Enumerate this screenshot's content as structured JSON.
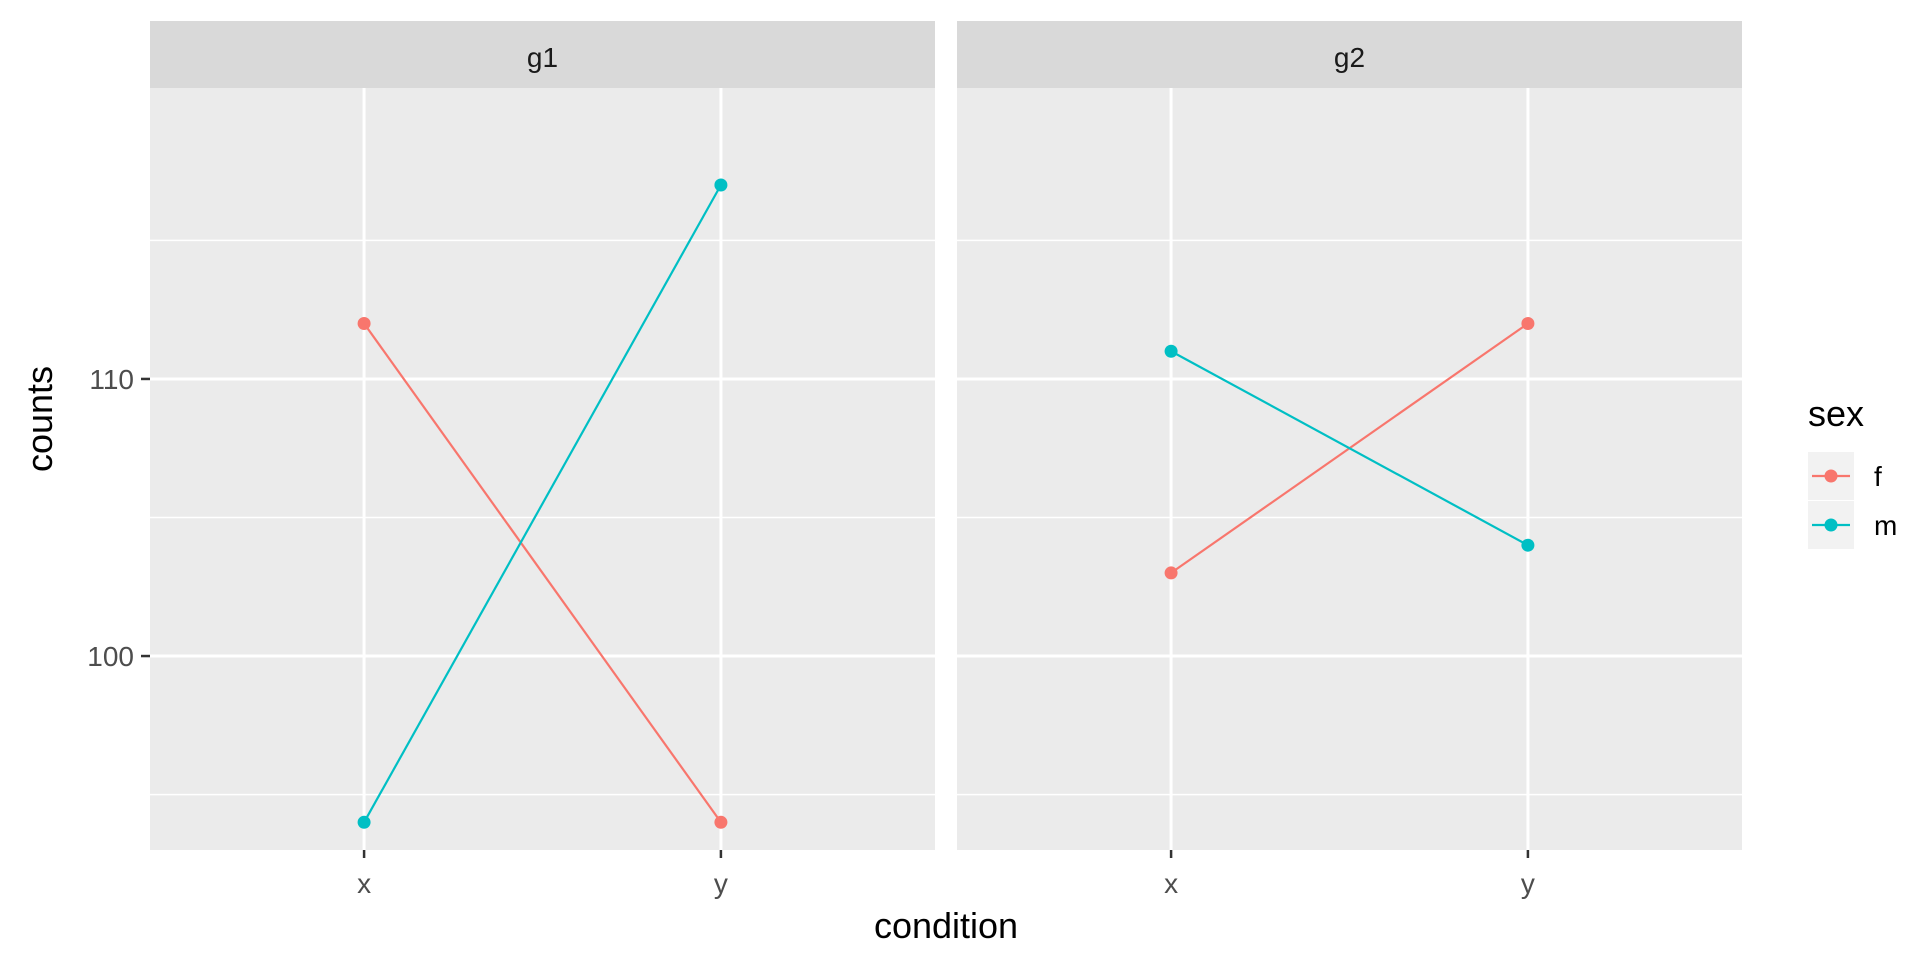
{
  "chart_data": {
    "type": "line",
    "xlabel": "condition",
    "ylabel": "counts",
    "categories": [
      "x",
      "y"
    ],
    "ylim": [
      93,
      120.5
    ],
    "yticks": [
      100,
      110
    ],
    "grid": true,
    "legend": {
      "title": "sex",
      "placement": "right",
      "entries": [
        "f",
        "m"
      ]
    },
    "colors": {
      "f": "#F8766D",
      "m": "#00BFC4"
    },
    "panels": [
      {
        "label": "g1",
        "series": [
          {
            "name": "f",
            "values": [
              112,
              94
            ]
          },
          {
            "name": "m",
            "values": [
              94,
              117
            ]
          }
        ]
      },
      {
        "label": "g2",
        "series": [
          {
            "name": "f",
            "values": [
              103,
              112
            ]
          },
          {
            "name": "m",
            "values": [
              111,
              104
            ]
          }
        ]
      }
    ]
  }
}
